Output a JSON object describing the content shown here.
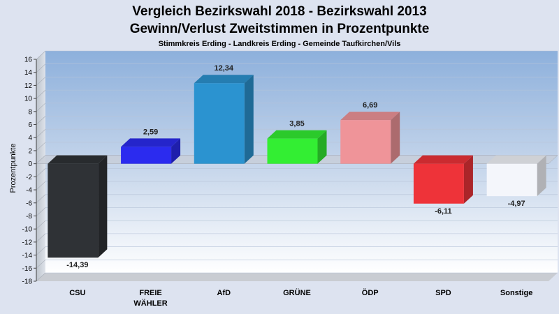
{
  "header": {
    "title_line1": "Vergleich Bezirkswahl 2018 - Bezirkswahl 2013",
    "title_line2": "Gewinn/Verlust Zweitstimmen in Prozentpunkte",
    "subtitle": "Stimmkreis Erding - Landkreis Erding - Gemeinde Taufkirchen/Vils"
  },
  "chart_data": {
    "type": "bar",
    "title": "Vergleich Bezirkswahl 2018 - Bezirkswahl 2013 / Gewinn/Verlust Zweitstimmen in Prozentpunkte",
    "subtitle": "Stimmkreis Erding - Landkreis Erding - Gemeinde Taufkirchen/Vils",
    "xlabel": "",
    "ylabel": "Prozentpunkte",
    "ylim": [
      -18,
      16
    ],
    "yticks": [
      16,
      14,
      12,
      10,
      8,
      6,
      4,
      2,
      0,
      -2,
      -4,
      -6,
      -8,
      -10,
      -12,
      -14,
      -16,
      -18
    ],
    "grid": true,
    "categories": [
      [
        "CSU"
      ],
      [
        "FREIE",
        "WÄHLER"
      ],
      [
        "AfD"
      ],
      [
        "GRÜNE"
      ],
      [
        "ÖDP"
      ],
      [
        "SPD"
      ],
      [
        "Sonstige"
      ]
    ],
    "values": [
      -14.39,
      2.59,
      12.34,
      3.85,
      6.69,
      -6.11,
      -4.97
    ],
    "value_labels": [
      "-14,39",
      "2,59",
      "12,34",
      "3,85",
      "6,69",
      "-6,11",
      "-4,97"
    ],
    "colors": [
      "#2f3236",
      "#2b2bef",
      "#2b93d0",
      "#33ee33",
      "#ef9499",
      "#ee3339",
      "#f4f6fb"
    ]
  }
}
